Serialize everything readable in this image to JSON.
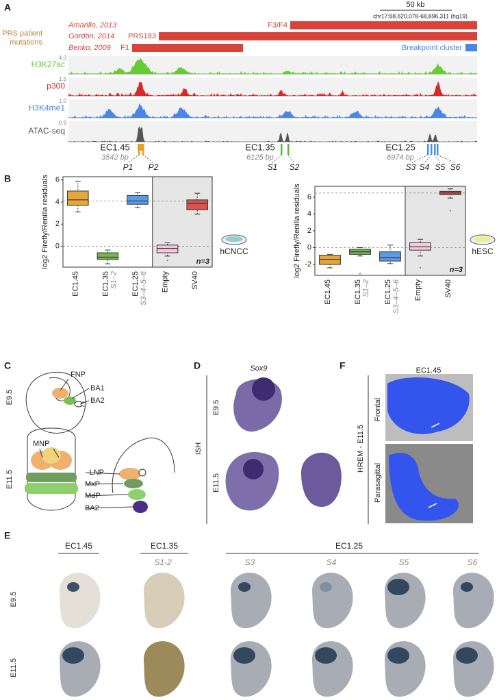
{
  "panel_labels": [
    "A",
    "B",
    "C",
    "D",
    "E",
    "F"
  ],
  "A": {
    "scale_bar": "50 kb",
    "coords": "chr17:68,620,078-68,896,311 (hg19)",
    "mutation_label_lines": [
      "PRS patient",
      "mutations"
    ],
    "mutations": [
      {
        "study": "Amarillo, 2013",
        "name": "F3/F4"
      },
      {
        "study": "Gordon, 2014",
        "name": "PRS183"
      },
      {
        "study": "Benko, 2009",
        "name": "F1"
      }
    ],
    "breakpoint": "Breakpoint cluster",
    "tracks": [
      {
        "name": "H3K27ac",
        "max": "4.0",
        "color": "#66cc33"
      },
      {
        "name": "p300",
        "max": "1.5",
        "color": "#d42a2a"
      },
      {
        "name": "H3K4me1",
        "max": "1.0",
        "color": "#4a86e8"
      },
      {
        "name": "ATAC-seq",
        "max": "0.9",
        "color": "#555555"
      }
    ],
    "elements": [
      {
        "name": "EC1.45",
        "size": "3542 bp",
        "parts": [
          "P1",
          "P2"
        ],
        "color": "#e8a020"
      },
      {
        "name": "EC1.35",
        "size": "6125 bp",
        "parts": [
          "S1",
          "S2"
        ],
        "color": "#5cb83a"
      },
      {
        "name": "EC1.25",
        "size": "6974 bp",
        "parts": [
          "S3",
          "S4",
          "S5",
          "S6"
        ],
        "color": "#4a90e2"
      }
    ]
  },
  "B": {
    "y_label": "log2 Firefly/Renilla residuals",
    "plots": [
      {
        "cell": "hCNCC",
        "n": "n=3",
        "categories": [
          "EC1.45",
          "EC1.35",
          "EC1.25",
          "Empty",
          "SV40"
        ],
        "sublabels": [
          null,
          "S1–2",
          "S3–4–5–6",
          null,
          null
        ],
        "ylim": [
          -1.9,
          6.3
        ],
        "yticks": [
          0,
          2,
          4,
          6
        ],
        "ref_lines": [
          0,
          4.1
        ],
        "boxes": [
          {
            "min": 3.1,
            "q1": 3.7,
            "median": 4.2,
            "q3": 5.0,
            "max": 5.9,
            "color": "#e8a53a"
          },
          {
            "min": -1.6,
            "q1": -1.2,
            "median": -1.0,
            "q3": -0.6,
            "max": -0.35,
            "color": "#74b84c"
          },
          {
            "min": 3.5,
            "q1": 3.8,
            "median": 4.1,
            "q3": 4.6,
            "max": 4.85,
            "color": "#5b9be8"
          },
          {
            "min": -0.9,
            "q1": -0.6,
            "median": -0.2,
            "q3": 0.1,
            "max": 0.3,
            "color": "#f5c8da",
            "outliers": [
              -1.3
            ]
          },
          {
            "min": 2.9,
            "q1": 3.3,
            "median": 3.9,
            "q3": 4.2,
            "max": 4.8,
            "color": "#d9534f"
          }
        ]
      },
      {
        "cell": "hESC",
        "n": "n=3",
        "categories": [
          "EC1.45",
          "EC1.35",
          "EC1.25",
          "Empty",
          "SV40"
        ],
        "sublabels": [
          null,
          "S1–2",
          "S3–4–5–6",
          null,
          null
        ],
        "ylim": [
          -3.3,
          7.3
        ],
        "yticks": [
          -2,
          0,
          2,
          4,
          6
        ],
        "ref_lines": [
          0,
          6.5
        ],
        "boxes": [
          {
            "min": -2.4,
            "q1": -2.0,
            "median": -1.4,
            "q3": -0.9,
            "max": -0.8,
            "color": "#e8a53a"
          },
          {
            "min": -1.0,
            "q1": -0.8,
            "median": -0.5,
            "q3": -0.2,
            "max": 0.0,
            "color": "#74b84c",
            "outliers": [
              -3.1
            ]
          },
          {
            "min": -1.9,
            "q1": -1.6,
            "median": -1.2,
            "q3": -0.5,
            "max": 0.3,
            "color": "#5b9be8"
          },
          {
            "min": -1.0,
            "q1": -0.3,
            "median": 0.1,
            "q3": 0.6,
            "max": 1.0,
            "color": "#f5c8da",
            "outliers": [
              -2.4
            ]
          },
          {
            "min": 5.9,
            "q1": 6.3,
            "median": 6.5,
            "q3": 6.7,
            "max": 7.0,
            "color": "#d9534f",
            "outliers": [
              4.4
            ]
          }
        ]
      }
    ]
  },
  "C": {
    "e95": "E9.5",
    "fnp": "FNP",
    "ba1": "BA1",
    "ba2a": "BA2",
    "e115": "E11.5",
    "mnp": "MNP",
    "lnp": "LNP",
    "mxp": "MxP",
    "mdp": "MdP",
    "ba2b": "BA2"
  },
  "D": {
    "gene": "Sox9",
    "method": "ISH",
    "e95": "E9.5",
    "e115": "E11.5"
  },
  "E": {
    "groups": [
      "EC1.45",
      "EC1.35",
      "EC1.25"
    ],
    "columns": [
      null,
      "S1-2",
      "S3",
      "S4",
      "S5",
      "S6"
    ],
    "rows": [
      "E9.5",
      "E11.5"
    ]
  },
  "F": {
    "element": "EC1.45",
    "method": "HREM - E11.5",
    "views": [
      "Frontal",
      "Parasagittal"
    ]
  }
}
